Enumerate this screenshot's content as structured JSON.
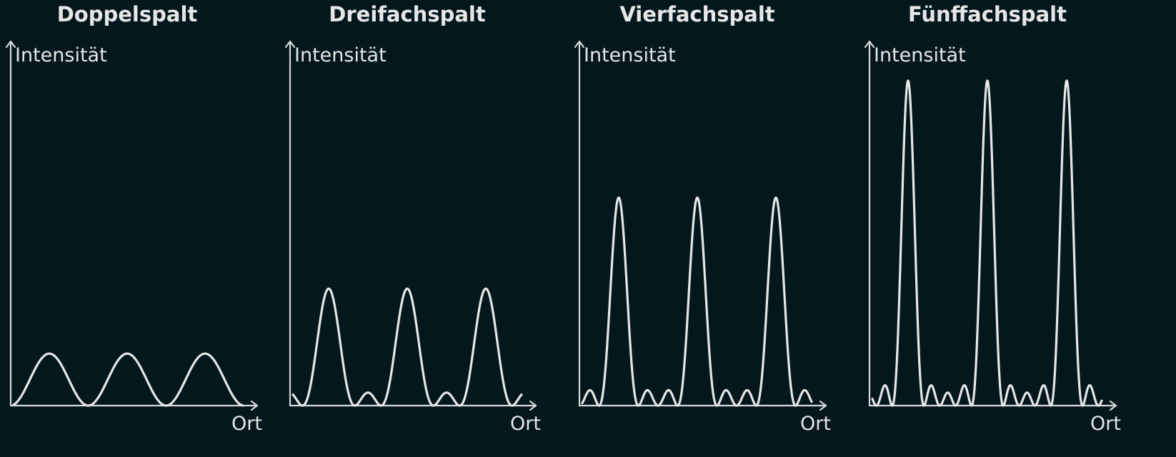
{
  "colors": {
    "background": "#03171c",
    "foreground": "#e6e6e6",
    "axis": "#d9d9d9"
  },
  "panels": [
    {
      "title": "Doppelspalt",
      "y_label": "Intensität",
      "x_label": "Ort",
      "slits": 2,
      "main_peak_height": 0.16,
      "side_peak_heights": [],
      "num_main_peaks": 3
    },
    {
      "title": "Dreifachspalt",
      "y_label": "Intensität",
      "x_label": "Ort",
      "slits": 3,
      "main_peak_height": 0.36,
      "side_peak_heights": [
        0.04
      ],
      "num_main_peaks": 3
    },
    {
      "title": "Vierfachspalt",
      "y_label": "Intensität",
      "x_label": "Ort",
      "slits": 4,
      "main_peak_height": 0.64,
      "side_peak_heights": [
        0.05,
        0.05
      ],
      "num_main_peaks": 3
    },
    {
      "title": "Fünffachspalt",
      "y_label": "Intensität",
      "x_label": "Ort",
      "slits": 5,
      "main_peak_height": 1.0,
      "side_peak_heights": [
        0.06,
        0.04,
        0.06
      ],
      "num_main_peaks": 3
    }
  ]
}
